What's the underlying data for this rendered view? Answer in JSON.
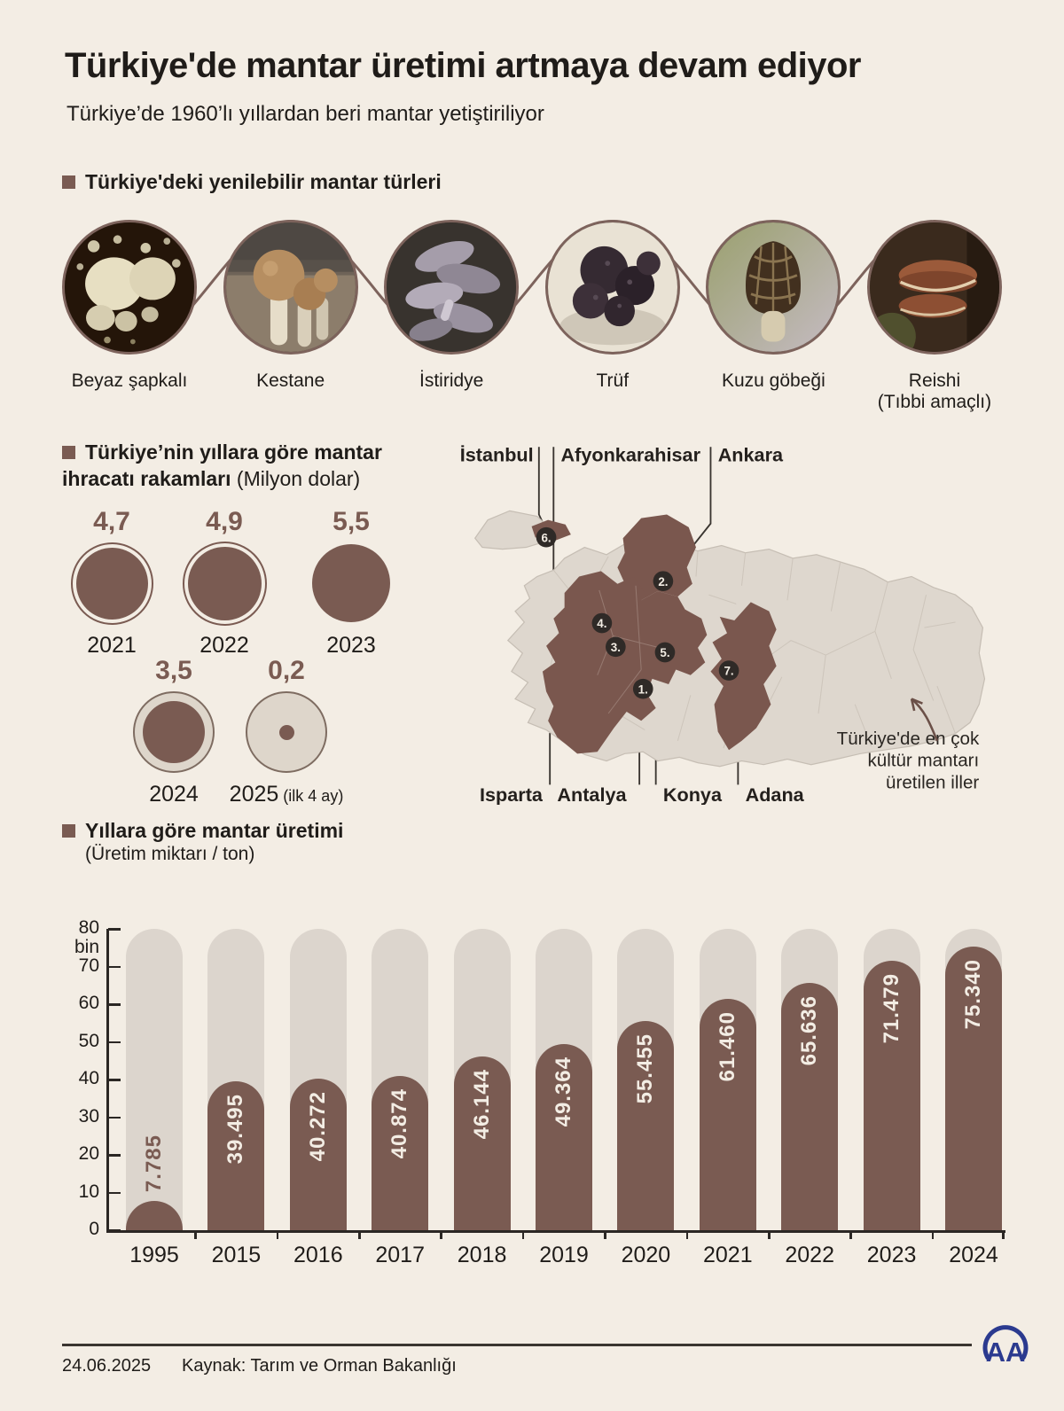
{
  "header": {
    "title": "Türkiye'de mantar üretimi artmaya devam ediyor",
    "subtitle": "Türkiye’de 1960’lı yıllardan beri mantar yetiştiriliyor"
  },
  "species": {
    "heading": "Türkiye'deki yenilebilir mantar türleri",
    "items": [
      {
        "label": "Beyaz şapkalı",
        "sublabel": ""
      },
      {
        "label": "Kestane",
        "sublabel": ""
      },
      {
        "label": "İstiridye",
        "sublabel": ""
      },
      {
        "label": "Trüf",
        "sublabel": ""
      },
      {
        "label": "Kuzu göbeği",
        "sublabel": ""
      },
      {
        "label": "Reishi",
        "sublabel": "(Tıbbi amaçlı)"
      }
    ]
  },
  "exports": {
    "heading_bold": "Türkiye’nin yıllara göre mantar ihracatı rakamları",
    "heading_note": "(Milyon dolar)",
    "max_value": 5.5,
    "circles": [
      {
        "year": "2021",
        "label": "4,7",
        "value": 4.7,
        "year_note": ""
      },
      {
        "year": "2022",
        "label": "4,9",
        "value": 4.9,
        "year_note": ""
      },
      {
        "year": "2023",
        "label": "5,5",
        "value": 5.5,
        "year_note": ""
      },
      {
        "year": "2024",
        "label": "3,5",
        "value": 3.5,
        "year_note": ""
      },
      {
        "year": "2025",
        "label": "0,2",
        "value": 0.2,
        "year_note": "(ilk 4 ay)"
      }
    ]
  },
  "map": {
    "labels_top": [
      "İstanbul",
      "Afyonkarahisar",
      "Ankara"
    ],
    "labels_bottom": [
      "Isparta",
      "Antalya",
      "Konya",
      "Adana"
    ],
    "markers": [
      {
        "n": "1.",
        "city": "Antalya"
      },
      {
        "n": "2.",
        "city": "Ankara"
      },
      {
        "n": "3.",
        "city": "Isparta"
      },
      {
        "n": "4.",
        "city": "Afyonkarahisar"
      },
      {
        "n": "5.",
        "city": "Konya"
      },
      {
        "n": "6.",
        "city": "İstanbul"
      },
      {
        "n": "7.",
        "city": "Adana"
      }
    ],
    "note": [
      "Türkiye'de en çok",
      "kültür mantarı",
      "üretilen iller"
    ]
  },
  "chart_data": {
    "type": "bar",
    "title": "Yıllara göre mantar üretimi",
    "subtitle": "(Üretim miktarı / ton)",
    "categories": [
      "1995",
      "2015",
      "2016",
      "2017",
      "2018",
      "2019",
      "2020",
      "2021",
      "2022",
      "2023",
      "2024"
    ],
    "values": [
      7785,
      39495,
      40272,
      40874,
      46144,
      49364,
      55455,
      61460,
      65636,
      71479,
      75340
    ],
    "value_labels": [
      "7.785",
      "39.495",
      "40.272",
      "40.874",
      "46.144",
      "49.364",
      "55.455",
      "61.460",
      "65.636",
      "71.479",
      "75.340"
    ],
    "ylim": [
      0,
      80000
    ],
    "yticks": [
      0,
      10,
      20,
      30,
      40,
      50,
      60,
      70,
      80
    ],
    "ytick_top_label": "80",
    "ytick_unit": "bin",
    "grid": false,
    "legend": "none"
  },
  "footer": {
    "date": "24.06.2025",
    "source": "Kaynak: Tarım ve Orman Bakanlığı",
    "logo": "AA"
  },
  "colors": {
    "background": "#f3ede4",
    "brown": "#7a5b52",
    "track": "#dcd5cd",
    "map_base": "#ded7ce",
    "map_border": "#c6beb4",
    "dark_text": "#1f1c19",
    "marker": "#2f2a27",
    "logo_blue": "#2b3a8f"
  }
}
